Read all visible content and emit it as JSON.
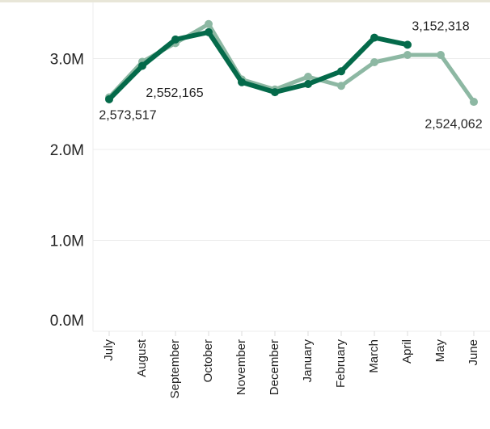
{
  "chart_data": {
    "type": "line",
    "categories": [
      "July",
      "August",
      "September",
      "October",
      "November",
      "December",
      "January",
      "February",
      "March",
      "April",
      "May",
      "June"
    ],
    "series": [
      {
        "color": "#8db8a3",
        "values": [
          2573517,
          2965000,
          3170000,
          3380000,
          2770000,
          2660000,
          2800000,
          2700000,
          2960000,
          3040000,
          3040000,
          2524062
        ],
        "value_labels": [
          "2,573,517",
          null,
          null,
          null,
          null,
          null,
          null,
          null,
          null,
          null,
          null,
          "2,524,062"
        ]
      },
      {
        "color": "#046a4a",
        "values": [
          2552165,
          2920000,
          3210000,
          3290000,
          2740000,
          2630000,
          2720000,
          2860000,
          3230000,
          3152318,
          null,
          null
        ],
        "value_labels": [
          "2,552,165",
          null,
          null,
          null,
          null,
          null,
          null,
          null,
          null,
          "3,152,318",
          null,
          null
        ]
      }
    ],
    "ylim": [
      0,
      3600000
    ],
    "yticks": [
      {
        "value": 0,
        "label": "0.0M"
      },
      {
        "value": 1000000,
        "label": "1.0M"
      },
      {
        "value": 2000000,
        "label": "2.0M"
      },
      {
        "value": 3000000,
        "label": "3.0M"
      }
    ],
    "grid": true
  }
}
